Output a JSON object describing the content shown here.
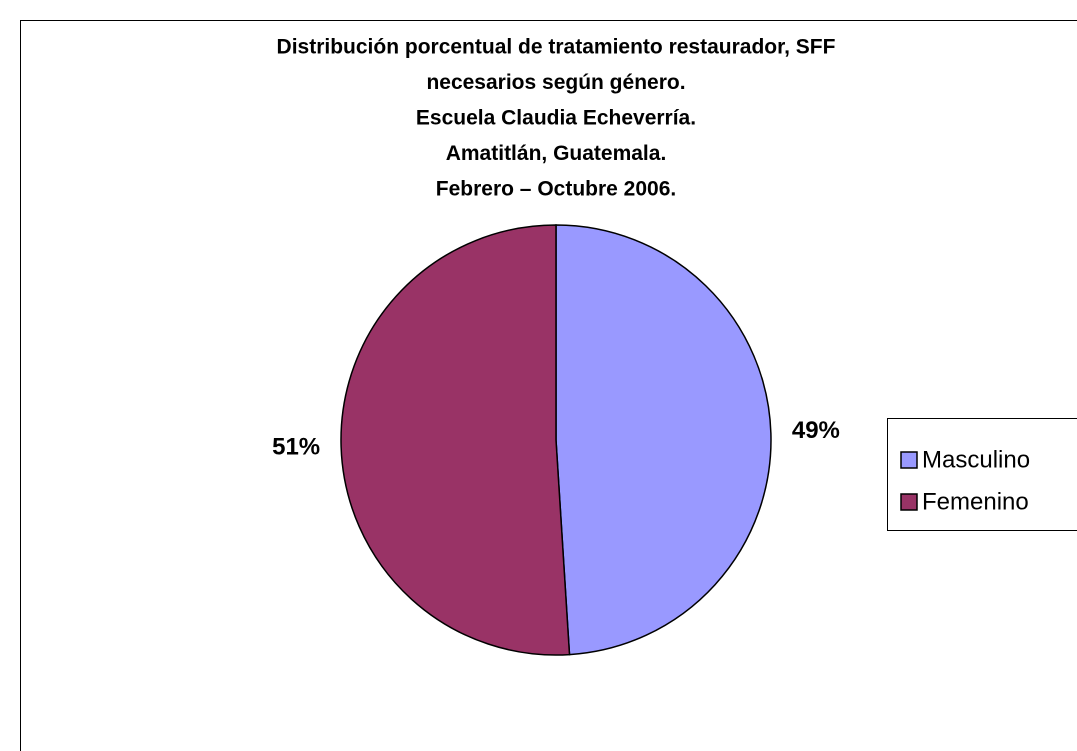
{
  "chart_data": {
    "type": "pie",
    "title": [
      "Distribución porcentual de tratamiento restaurador, SFF",
      "necesarios según género.",
      "Escuela Claudia Echeverría.",
      "Amatitlán, Guatemala.",
      "Febrero – Octubre 2006."
    ],
    "categories": [
      "Masculino",
      "Femenino"
    ],
    "values": [
      49,
      51
    ],
    "value_labels": [
      "49%",
      "51%"
    ],
    "colors": [
      "#9999ff",
      "#993366"
    ],
    "legend": "right"
  }
}
